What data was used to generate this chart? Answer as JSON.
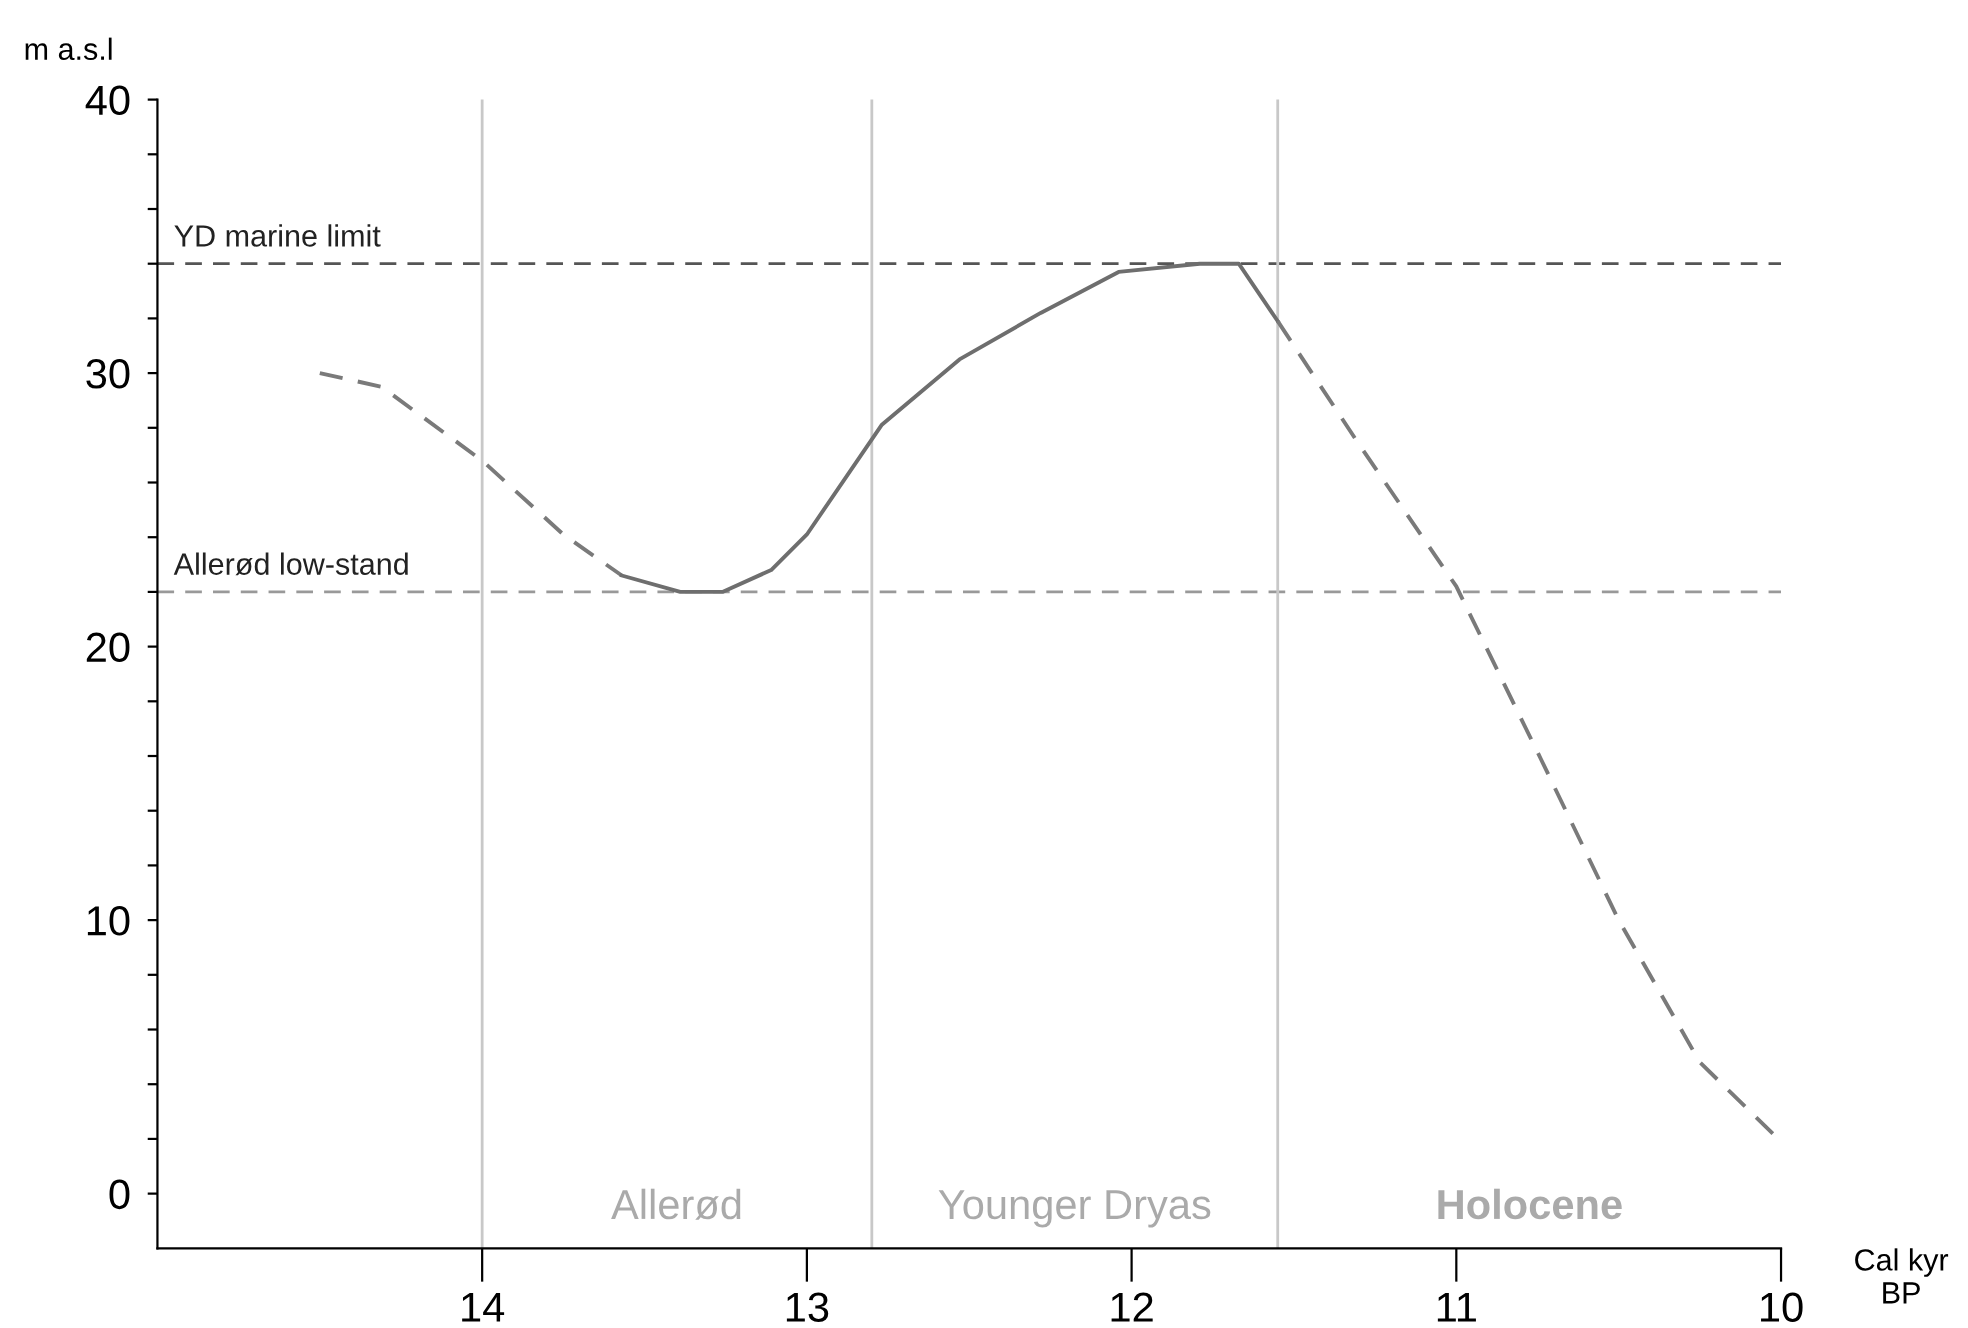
{
  "chart_data": {
    "type": "line",
    "xlabel": "Cal kyr BP",
    "ylabel": "m a.s.l",
    "xlim": [
      15,
      10
    ],
    "ylim": [
      -2,
      40
    ],
    "xticks": [
      14,
      13,
      12,
      11,
      10
    ],
    "yticks": [
      0,
      {
        "value": 2,
        "label": null
      },
      {
        "value": 4,
        "label": null
      },
      {
        "value": 6,
        "label": null
      },
      {
        "value": 8,
        "label": null
      },
      10,
      {
        "value": 12,
        "label": null
      },
      {
        "value": 14,
        "label": null
      },
      {
        "value": 16,
        "label": null
      },
      {
        "value": 18,
        "label": null
      },
      20,
      {
        "value": 22,
        "label": null
      },
      {
        "value": 24,
        "label": null
      },
      {
        "value": 26,
        "label": null
      },
      {
        "value": 28,
        "label": null
      },
      30,
      {
        "value": 32,
        "label": null
      },
      {
        "value": 34,
        "label": null
      },
      {
        "value": 36,
        "label": null
      },
      {
        "value": 38,
        "label": null
      },
      40
    ],
    "grid": false,
    "legend": false,
    "series": [
      {
        "color": "#7a7a7a",
        "line_style": "dashed",
        "x": [
          14.5,
          14.31,
          14.0,
          13.75,
          13.57
        ],
        "values": [
          30,
          29.5,
          26.8,
          24.1,
          22.6
        ]
      },
      {
        "color": "#6e6e6e",
        "line_style": "solid",
        "x": [
          13.57,
          13.39,
          13.26,
          13.11,
          13.0,
          12.77,
          12.53,
          12.28,
          12.04,
          11.79,
          11.67,
          11.55
        ],
        "values": [
          22.6,
          22.0,
          22.0,
          22.8,
          24.1,
          28.1,
          30.5,
          32.2,
          33.7,
          34.0,
          34.0,
          31.9
        ]
      },
      {
        "color": "#7a7a7a",
        "line_style": "dashed",
        "x": [
          11.55,
          11.3,
          11.0,
          10.74,
          10.5,
          10.25,
          10.0
        ],
        "values": [
          31.9,
          27.4,
          22.2,
          15.9,
          10,
          4.8,
          1.9
        ]
      }
    ],
    "ref_lines": [
      {
        "axis": "y",
        "value": 34,
        "label": "YD marine limit",
        "color": "#555555",
        "line_style": "dashed"
      },
      {
        "axis": "y",
        "value": 22,
        "label": "Allerød low-stand",
        "color": "#999999",
        "line_style": "dashed"
      },
      {
        "axis": "x",
        "value": 14,
        "color": "#c8c8c8",
        "line_style": "solid"
      },
      {
        "axis": "x",
        "value": 12.8,
        "color": "#c8c8c8",
        "line_style": "solid"
      },
      {
        "axis": "x",
        "value": 11.55,
        "color": "#c8c8c8",
        "line_style": "solid"
      }
    ],
    "annotations": [
      "Allerød",
      "Younger Dryas",
      "Holocene"
    ]
  }
}
